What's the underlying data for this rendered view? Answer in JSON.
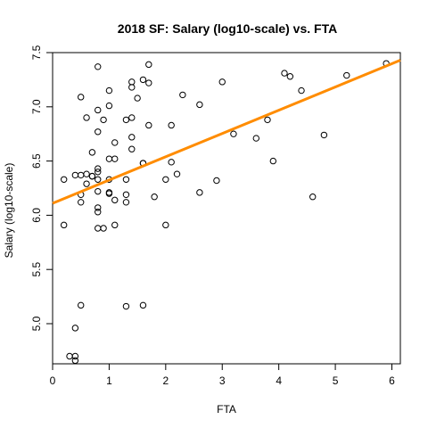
{
  "chart_data": {
    "type": "scatter",
    "title": "2018 SF: Salary (log10-scale) vs. FTA",
    "xlabel": "FTA",
    "ylabel": "Salary (log10-scale)",
    "xlim": [
      0,
      6.15
    ],
    "ylim": [
      4.63,
      7.5
    ],
    "x_ticks": [
      0,
      1,
      2,
      3,
      4,
      5,
      6
    ],
    "y_ticks": [
      5.0,
      5.5,
      6.0,
      6.5,
      7.0,
      7.5
    ],
    "y_tick_labels": [
      "5.0",
      "5.5",
      "6.0",
      "6.5",
      "7.0",
      "7.5"
    ],
    "grid": false,
    "point_color": "#000000",
    "trend_line": {
      "color": "#ff8c00",
      "x": [
        0,
        6.15
      ],
      "y": [
        6.11,
        7.43
      ]
    },
    "points": [
      {
        "x": 0.2,
        "y": 6.33
      },
      {
        "x": 0.2,
        "y": 5.91
      },
      {
        "x": 0.3,
        "y": 4.7
      },
      {
        "x": 0.4,
        "y": 4.7
      },
      {
        "x": 0.4,
        "y": 4.66
      },
      {
        "x": 0.4,
        "y": 4.96
      },
      {
        "x": 0.4,
        "y": 6.37
      },
      {
        "x": 0.5,
        "y": 6.37
      },
      {
        "x": 0.5,
        "y": 6.19
      },
      {
        "x": 0.5,
        "y": 6.12
      },
      {
        "x": 0.5,
        "y": 7.09
      },
      {
        "x": 0.5,
        "y": 5.17
      },
      {
        "x": 0.6,
        "y": 6.38
      },
      {
        "x": 0.6,
        "y": 6.29
      },
      {
        "x": 0.6,
        "y": 6.9
      },
      {
        "x": 0.7,
        "y": 6.36
      },
      {
        "x": 0.7,
        "y": 6.36
      },
      {
        "x": 0.7,
        "y": 6.58
      },
      {
        "x": 0.8,
        "y": 6.43
      },
      {
        "x": 0.8,
        "y": 6.4
      },
      {
        "x": 0.8,
        "y": 6.33
      },
      {
        "x": 0.8,
        "y": 6.22
      },
      {
        "x": 0.8,
        "y": 6.07
      },
      {
        "x": 0.8,
        "y": 6.03
      },
      {
        "x": 0.8,
        "y": 5.88
      },
      {
        "x": 0.8,
        "y": 6.77
      },
      {
        "x": 0.8,
        "y": 6.97
      },
      {
        "x": 0.8,
        "y": 7.37
      },
      {
        "x": 0.9,
        "y": 6.88
      },
      {
        "x": 0.9,
        "y": 5.88
      },
      {
        "x": 1.0,
        "y": 7.15
      },
      {
        "x": 1.0,
        "y": 7.01
      },
      {
        "x": 1.0,
        "y": 6.52
      },
      {
        "x": 1.0,
        "y": 6.33
      },
      {
        "x": 1.0,
        "y": 6.21
      },
      {
        "x": 1.0,
        "y": 6.2
      },
      {
        "x": 1.1,
        "y": 6.67
      },
      {
        "x": 1.1,
        "y": 6.52
      },
      {
        "x": 1.1,
        "y": 6.14
      },
      {
        "x": 1.1,
        "y": 5.91
      },
      {
        "x": 1.3,
        "y": 6.88
      },
      {
        "x": 1.3,
        "y": 6.33
      },
      {
        "x": 1.3,
        "y": 6.19
      },
      {
        "x": 1.3,
        "y": 6.12
      },
      {
        "x": 1.3,
        "y": 5.16
      },
      {
        "x": 1.4,
        "y": 7.23
      },
      {
        "x": 1.4,
        "y": 7.18
      },
      {
        "x": 1.4,
        "y": 6.9
      },
      {
        "x": 1.4,
        "y": 6.72
      },
      {
        "x": 1.4,
        "y": 6.61
      },
      {
        "x": 1.5,
        "y": 7.08
      },
      {
        "x": 1.6,
        "y": 7.25
      },
      {
        "x": 1.6,
        "y": 6.48
      },
      {
        "x": 1.6,
        "y": 6.48
      },
      {
        "x": 1.6,
        "y": 5.17
      },
      {
        "x": 1.7,
        "y": 7.39
      },
      {
        "x": 1.7,
        "y": 7.22
      },
      {
        "x": 1.7,
        "y": 6.83
      },
      {
        "x": 1.8,
        "y": 6.17
      },
      {
        "x": 2.0,
        "y": 6.33
      },
      {
        "x": 2.0,
        "y": 5.91
      },
      {
        "x": 2.1,
        "y": 6.83
      },
      {
        "x": 2.1,
        "y": 6.49
      },
      {
        "x": 2.2,
        "y": 6.38
      },
      {
        "x": 2.3,
        "y": 7.11
      },
      {
        "x": 2.6,
        "y": 7.02
      },
      {
        "x": 2.6,
        "y": 6.21
      },
      {
        "x": 2.9,
        "y": 6.32
      },
      {
        "x": 3.0,
        "y": 7.23
      },
      {
        "x": 3.2,
        "y": 6.75
      },
      {
        "x": 3.6,
        "y": 6.71
      },
      {
        "x": 3.8,
        "y": 6.88
      },
      {
        "x": 3.9,
        "y": 6.5
      },
      {
        "x": 4.1,
        "y": 7.31
      },
      {
        "x": 4.2,
        "y": 7.28
      },
      {
        "x": 4.4,
        "y": 7.15
      },
      {
        "x": 4.6,
        "y": 6.17
      },
      {
        "x": 4.8,
        "y": 6.74
      },
      {
        "x": 5.2,
        "y": 7.29
      },
      {
        "x": 5.9,
        "y": 7.4
      }
    ]
  }
}
